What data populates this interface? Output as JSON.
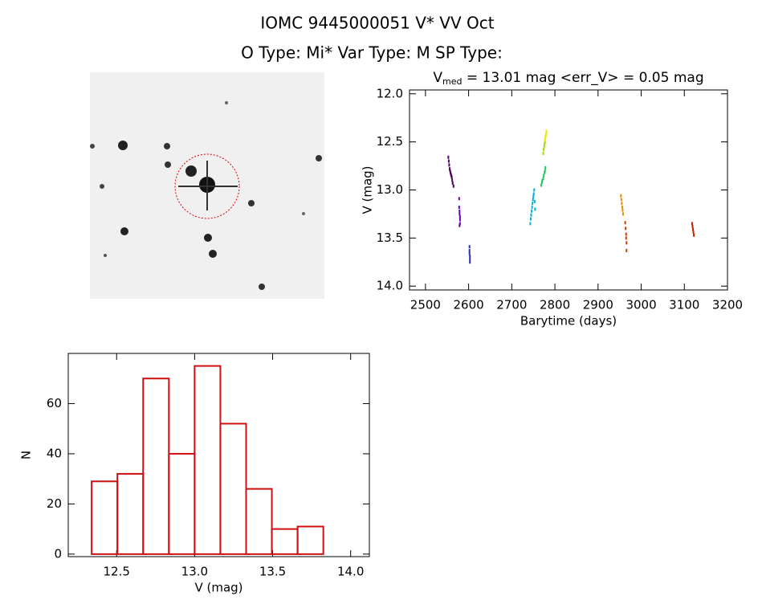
{
  "header": {
    "title": "IOMC 9445000051   V* VV Oct",
    "subtitle": "O Type: Mi*  Var Type: M  SP Type:"
  },
  "chart_data": [
    {
      "type": "scatter",
      "title": "V",
      "title_subscript": "med",
      "title_suffix": " = 13.01 mag <err_V> = 0.05 mag",
      "xlabel": "Barytime (days)",
      "ylabel": "V (mag)",
      "xlim": [
        2463,
        3200
      ],
      "ylim": [
        14.04,
        11.96
      ],
      "xticks": [
        2500,
        2600,
        2700,
        2800,
        2900,
        3000,
        3100,
        3200
      ],
      "yticks": [
        {
          "value": 12,
          "label": "12.0"
        },
        12.5,
        {
          "value": 13,
          "label": "13.0"
        },
        13.5,
        {
          "value": 14,
          "label": "14.0"
        }
      ],
      "series": [
        {
          "color": "#500060",
          "x": [
            2553,
            2554,
            2555,
            2556,
            2557,
            2558,
            2559,
            2560,
            2561,
            2562,
            2563,
            2565
          ],
          "values": [
            12.66,
            12.7,
            12.74,
            12.78,
            12.8,
            12.82,
            12.84,
            12.85,
            12.87,
            12.9,
            12.93,
            12.96
          ]
        },
        {
          "color": "#6a00b0",
          "x": [
            2578,
            2578,
            2579,
            2579,
            2580,
            2580,
            2580,
            2579
          ],
          "values": [
            13.09,
            13.18,
            13.22,
            13.25,
            13.28,
            13.31,
            13.35,
            13.37
          ]
        },
        {
          "color": "#2830b0",
          "x": [
            2602,
            2602,
            2602,
            2603,
            2603,
            2603
          ],
          "values": [
            13.59,
            13.63,
            13.66,
            13.69,
            13.72,
            13.75
          ]
        },
        {
          "color": "#00b0e0",
          "x": [
            2743,
            2744,
            2745,
            2746,
            2747,
            2748,
            2749,
            2750,
            2751,
            2752,
            2753,
            2754
          ],
          "values": [
            13.35,
            13.3,
            13.26,
            13.22,
            13.18,
            13.14,
            13.1,
            13.07,
            13.04,
            13.0,
            13.12,
            13.2
          ]
        },
        {
          "color": "#20c860",
          "x": [
            2768,
            2770,
            2771,
            2773,
            2774,
            2776,
            2777,
            2778
          ],
          "values": [
            12.95,
            12.92,
            12.9,
            12.88,
            12.85,
            12.82,
            12.8,
            12.77
          ]
        },
        {
          "color": "#a0e000",
          "x": [
            2773,
            2774,
            2775,
            2776,
            2777
          ],
          "values": [
            12.62,
            12.58,
            12.55,
            12.52,
            12.5
          ]
        },
        {
          "color": "#e8e800",
          "x": [
            2777,
            2778,
            2779,
            2780,
            2780
          ],
          "values": [
            12.48,
            12.45,
            12.43,
            12.41,
            12.39
          ]
        },
        {
          "color": "#e09000",
          "x": [
            2953,
            2954,
            2955,
            2956,
            2957,
            2958
          ],
          "values": [
            13.06,
            13.1,
            13.14,
            13.18,
            13.21,
            13.25
          ]
        },
        {
          "color": "#c84000",
          "x": [
            2963,
            2964,
            2965,
            2965,
            2966,
            2966
          ],
          "values": [
            13.34,
            13.4,
            13.46,
            13.5,
            13.55,
            13.63
          ]
        },
        {
          "color": "#c82000",
          "x": [
            3118,
            3119,
            3120,
            3121,
            3122
          ],
          "values": [
            13.35,
            13.38,
            13.41,
            13.44,
            13.47
          ]
        }
      ]
    },
    {
      "type": "histogram",
      "xlabel": "V (mag)",
      "ylabel": "N",
      "color": "#d01010",
      "bins": [
        12.34,
        12.505,
        12.67,
        12.835,
        13.0,
        13.165,
        13.33,
        13.495,
        13.66,
        13.825
      ],
      "values": [
        29,
        32,
        70,
        40,
        75,
        52,
        26,
        10,
        11
      ],
      "xlim": [
        12.19,
        14.12
      ],
      "ylim": [
        -1,
        80
      ],
      "xticks": [
        12.5,
        {
          "value": 13,
          "label": "13.0"
        },
        13.5,
        {
          "value": 14,
          "label": "14.0"
        }
      ],
      "yticks": [
        0,
        20,
        40,
        60
      ]
    }
  ]
}
